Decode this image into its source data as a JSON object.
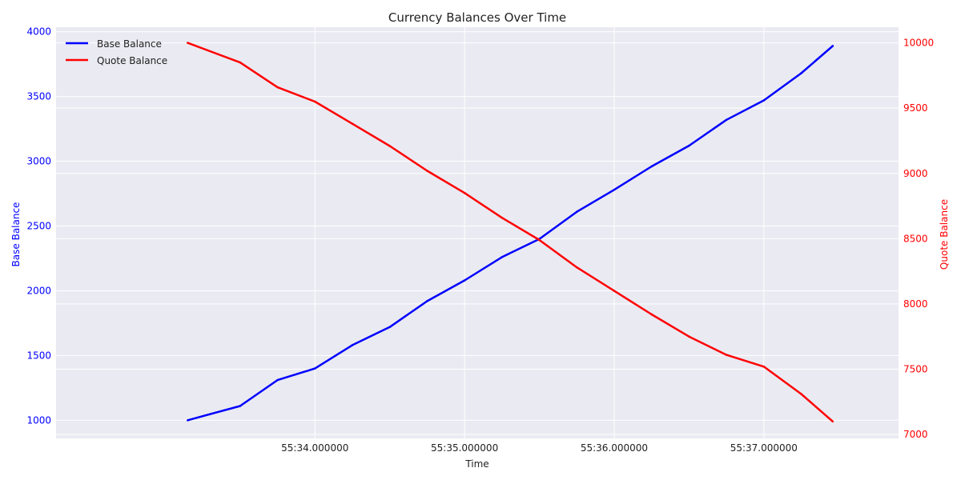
{
  "chart_data": {
    "type": "line",
    "title": "Currency Balances Over Time",
    "xlabel": "Time",
    "ylabel_left": "Base Balance",
    "ylabel_right": "Quote Balance",
    "x_ticks": [
      "55:34.000000",
      "55:35.000000",
      "55:36.000000",
      "55:37.000000"
    ],
    "x_tick_values_seconds": [
      34,
      35,
      36,
      37
    ],
    "xlim_seconds": [
      32.27,
      37.9
    ],
    "y_left_ticks": [
      1000,
      1500,
      2000,
      2500,
      3000,
      3500,
      4000
    ],
    "y_left_lim": [
      860,
      4035
    ],
    "y_right_ticks": [
      7000,
      7500,
      8000,
      8500,
      9000,
      9500,
      10000
    ],
    "y_right_lim": [
      6970,
      10120
    ],
    "grid": true,
    "legend_position": "top-left",
    "series": [
      {
        "name": "Base Balance",
        "axis": "left",
        "color": "#0000ff",
        "x_seconds": [
          33.15,
          33.5,
          33.75,
          34.0,
          34.25,
          34.5,
          34.75,
          35.0,
          35.25,
          35.5,
          35.75,
          36.0,
          36.25,
          36.5,
          36.75,
          37.0,
          37.25,
          37.46
        ],
        "values": [
          1000,
          1110,
          1310,
          1400,
          1580,
          1720,
          1920,
          2080,
          2260,
          2400,
          2610,
          2780,
          2960,
          3120,
          3320,
          3470,
          3680,
          3890
        ]
      },
      {
        "name": "Quote Balance",
        "axis": "right",
        "color": "#ff0000",
        "x_seconds": [
          33.15,
          33.5,
          33.75,
          34.0,
          34.25,
          34.5,
          34.75,
          35.0,
          35.25,
          35.5,
          35.75,
          36.0,
          36.25,
          36.5,
          36.75,
          37.0,
          37.25,
          37.46
        ],
        "values": [
          10000,
          9850,
          9660,
          9550,
          9380,
          9210,
          9020,
          8850,
          8660,
          8490,
          8280,
          8100,
          7920,
          7750,
          7610,
          7520,
          7310,
          7100
        ]
      }
    ]
  }
}
